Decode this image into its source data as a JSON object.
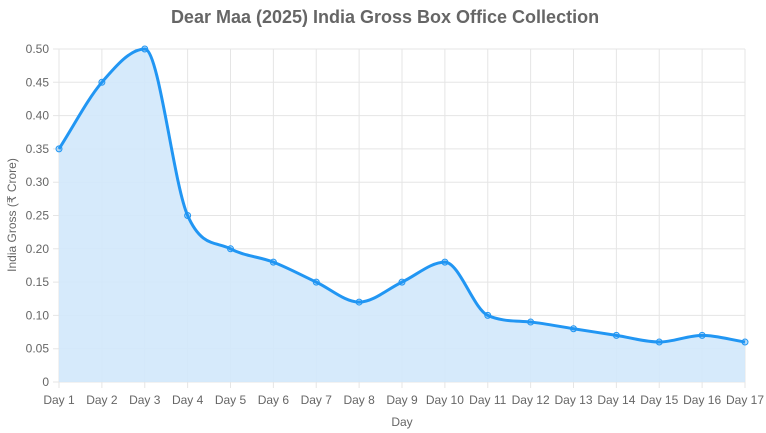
{
  "chart_data": {
    "type": "line",
    "title": "Dear Maa (2025) India Gross Box Office Collection",
    "xlabel": "Day",
    "ylabel": "India Gross (₹ Crore)",
    "ylim": [
      0,
      0.5
    ],
    "yticks": [
      "0",
      "0.05",
      "0.10",
      "0.15",
      "0.20",
      "0.25",
      "0.30",
      "0.35",
      "0.40",
      "0.45",
      "0.50"
    ],
    "categories": [
      "Day 1",
      "Day 2",
      "Day 3",
      "Day 4",
      "Day 5",
      "Day 6",
      "Day 7",
      "Day 8",
      "Day 9",
      "Day 10",
      "Day 11",
      "Day 12",
      "Day 13",
      "Day 14",
      "Day 15",
      "Day 16",
      "Day 17"
    ],
    "series": [
      {
        "name": "India Gross",
        "values": [
          0.35,
          0.45,
          0.5,
          0.25,
          0.2,
          0.18,
          0.15,
          0.12,
          0.15,
          0.18,
          0.1,
          0.09,
          0.08,
          0.07,
          0.06,
          0.07,
          0.06
        ]
      }
    ],
    "grid": true,
    "fill": true,
    "colors": {
      "line": "#2196f3",
      "fill": "#d2e8fb",
      "grid": "#e5e5e5"
    }
  }
}
